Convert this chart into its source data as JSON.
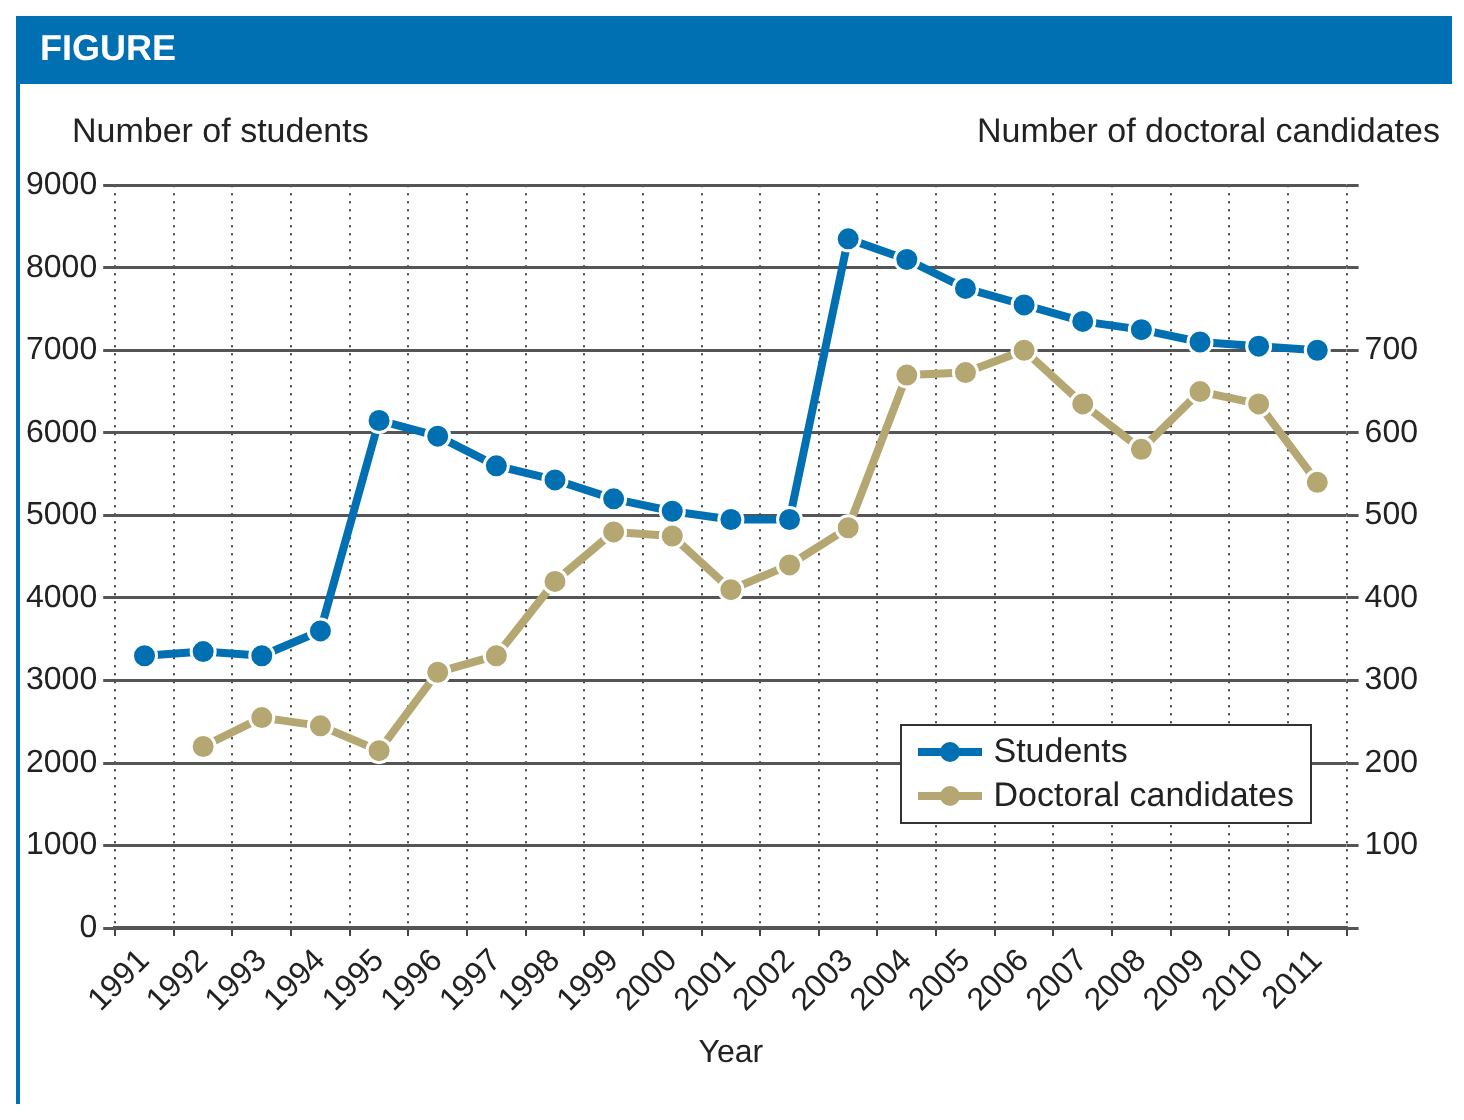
{
  "chart_data": {
    "type": "line",
    "title": "FIGURE",
    "ylabel": "Number of students",
    "y2label": "Number of doctoral candidates",
    "xlabel": "Year",
    "categories": [
      "1991",
      "1992",
      "1993",
      "1994",
      "1995",
      "1996",
      "1997",
      "1998",
      "1999",
      "2000",
      "2001",
      "2002",
      "2003",
      "2004",
      "2005",
      "2006",
      "2007",
      "2008",
      "2009",
      "2010",
      "2011"
    ],
    "series": [
      {
        "name": "Students",
        "color": "#0070b3",
        "values": [
          3300,
          3350,
          3300,
          3600,
          6150,
          5960,
          5600,
          5430,
          5200,
          5050,
          4950,
          4950,
          8350,
          8100,
          7750,
          7550,
          7350,
          7250,
          7100,
          7050,
          7000
        ]
      },
      {
        "name": "Doctoral candidates",
        "color": "#b5a772",
        "axis": "y2",
        "values": [
          null,
          220,
          255,
          245,
          215,
          310,
          330,
          420,
          480,
          475,
          410,
          440,
          485,
          670,
          673,
          700,
          635,
          580,
          650,
          635,
          540
        ]
      }
    ],
    "ylim": [
      0,
      9000
    ],
    "yticks": [
      0,
      1000,
      2000,
      3000,
      4000,
      5000,
      6000,
      7000,
      8000,
      9000
    ],
    "y2lim": [
      0,
      900
    ],
    "y2ticks": [
      {
        "value": 0,
        "label": null
      },
      100,
      200,
      300,
      400,
      500,
      600,
      700,
      {
        "value": 800,
        "label": null
      },
      {
        "value": 900,
        "label": null
      }
    ],
    "grid": true,
    "legend": "bottom right",
    "marker": "circle",
    "line_style": "solid"
  }
}
